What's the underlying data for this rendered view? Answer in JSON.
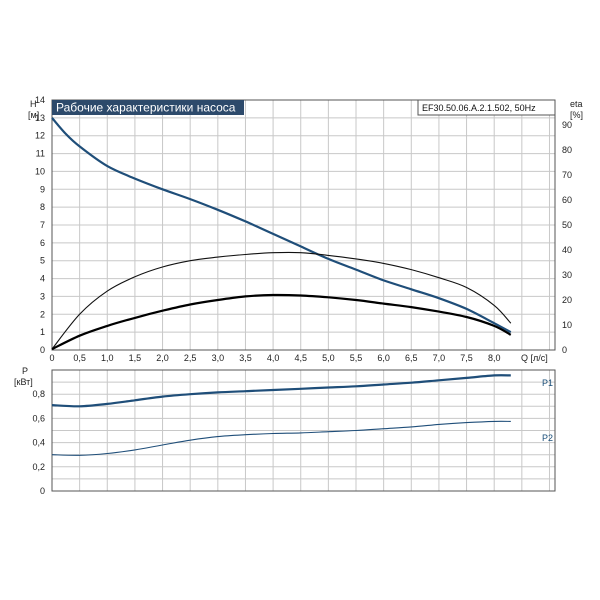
{
  "chart_data": [
    {
      "type": "line",
      "title": "Рабочие характеристики насоса",
      "subtitle": "EF30.50.06.A.2.1.502, 50Hz",
      "xlabel": "Q [л/с]",
      "ylabel_left": [
        "H",
        "[м]"
      ],
      "ylabel_right": [
        "eta",
        "[%]"
      ],
      "x_ticks": [
        "0",
        "0,5",
        "1,0",
        "1,5",
        "2,0",
        "2,5",
        "3,0",
        "3,5",
        "4,0",
        "4,5",
        "5,0",
        "5,5",
        "6,0",
        "6,5",
        "7,0",
        "7,5",
        "8,0"
      ],
      "y_left_ticks": [
        "0",
        "1",
        "2",
        "3",
        "4",
        "5",
        "6",
        "7",
        "8",
        "9",
        "10",
        "11",
        "12",
        "13",
        "14"
      ],
      "y_right_ticks": [
        "0",
        "10",
        "20",
        "30",
        "40",
        "50",
        "60",
        "70",
        "80",
        "90"
      ],
      "xlim": [
        0,
        9.1
      ],
      "ylim_left": [
        0,
        14
      ],
      "ylim_right": [
        0,
        100
      ],
      "grid": true,
      "series": [
        {
          "axis": "left",
          "color": "#1f4e79",
          "x": [
            0,
            0.25,
            0.5,
            1.0,
            1.5,
            2.0,
            2.5,
            3.0,
            3.5,
            4.0,
            4.5,
            5.0,
            5.5,
            6.0,
            6.5,
            7.0,
            7.5,
            8.0,
            8.3
          ],
          "y": [
            13.0,
            12.1,
            11.4,
            10.3,
            9.6,
            9.0,
            8.45,
            7.85,
            7.2,
            6.5,
            5.8,
            5.1,
            4.5,
            3.9,
            3.4,
            2.9,
            2.3,
            1.5,
            1.0
          ]
        },
        {
          "axis": "left",
          "color": "#111111",
          "x": [
            0,
            0.5,
            1.0,
            1.5,
            2.0,
            2.5,
            3.0,
            3.5,
            4.0,
            4.5,
            5.0,
            5.5,
            6.0,
            6.5,
            7.0,
            7.5,
            8.0,
            8.3
          ],
          "y": [
            0.05,
            2.0,
            3.3,
            4.1,
            4.65,
            5.0,
            5.2,
            5.35,
            5.45,
            5.45,
            5.3,
            5.1,
            4.85,
            4.5,
            4.05,
            3.5,
            2.5,
            1.5
          ]
        },
        {
          "axis": "left",
          "color": "#000000",
          "x": [
            0,
            0.5,
            1.0,
            1.5,
            2.0,
            2.5,
            3.0,
            3.5,
            4.0,
            4.5,
            5.0,
            5.5,
            6.0,
            6.5,
            7.0,
            7.5,
            8.0,
            8.3
          ],
          "y": [
            0.05,
            0.8,
            1.35,
            1.8,
            2.2,
            2.55,
            2.8,
            3.0,
            3.08,
            3.05,
            2.95,
            2.8,
            2.6,
            2.4,
            2.15,
            1.85,
            1.35,
            0.85
          ]
        }
      ]
    },
    {
      "type": "line",
      "ylabel": [
        "P",
        "[кВт]"
      ],
      "y_ticks": [
        "0",
        "0,2",
        "0,4",
        "0,6",
        "0,8"
      ],
      "ylim": [
        0,
        1.0
      ],
      "xlim": [
        0,
        9.1
      ],
      "grid": true,
      "series": [
        {
          "name": "P1",
          "color": "#1f4e79",
          "x": [
            0,
            0.5,
            1.0,
            1.5,
            2.0,
            2.5,
            3.0,
            3.5,
            4.0,
            4.5,
            5.0,
            5.5,
            6.0,
            6.5,
            7.0,
            7.5,
            8.0,
            8.3
          ],
          "y": [
            0.71,
            0.7,
            0.72,
            0.75,
            0.78,
            0.8,
            0.815,
            0.825,
            0.835,
            0.845,
            0.855,
            0.865,
            0.88,
            0.895,
            0.915,
            0.935,
            0.955,
            0.955
          ]
        },
        {
          "name": "P2",
          "color": "#1f4e79",
          "x": [
            0,
            0.5,
            1.0,
            1.5,
            2.0,
            2.5,
            3.0,
            3.5,
            4.0,
            4.5,
            5.0,
            5.5,
            6.0,
            6.5,
            7.0,
            7.5,
            8.0,
            8.3
          ],
          "y": [
            0.3,
            0.295,
            0.31,
            0.34,
            0.38,
            0.42,
            0.45,
            0.465,
            0.475,
            0.48,
            0.49,
            0.5,
            0.515,
            0.53,
            0.55,
            0.565,
            0.575,
            0.575
          ]
        }
      ]
    }
  ]
}
